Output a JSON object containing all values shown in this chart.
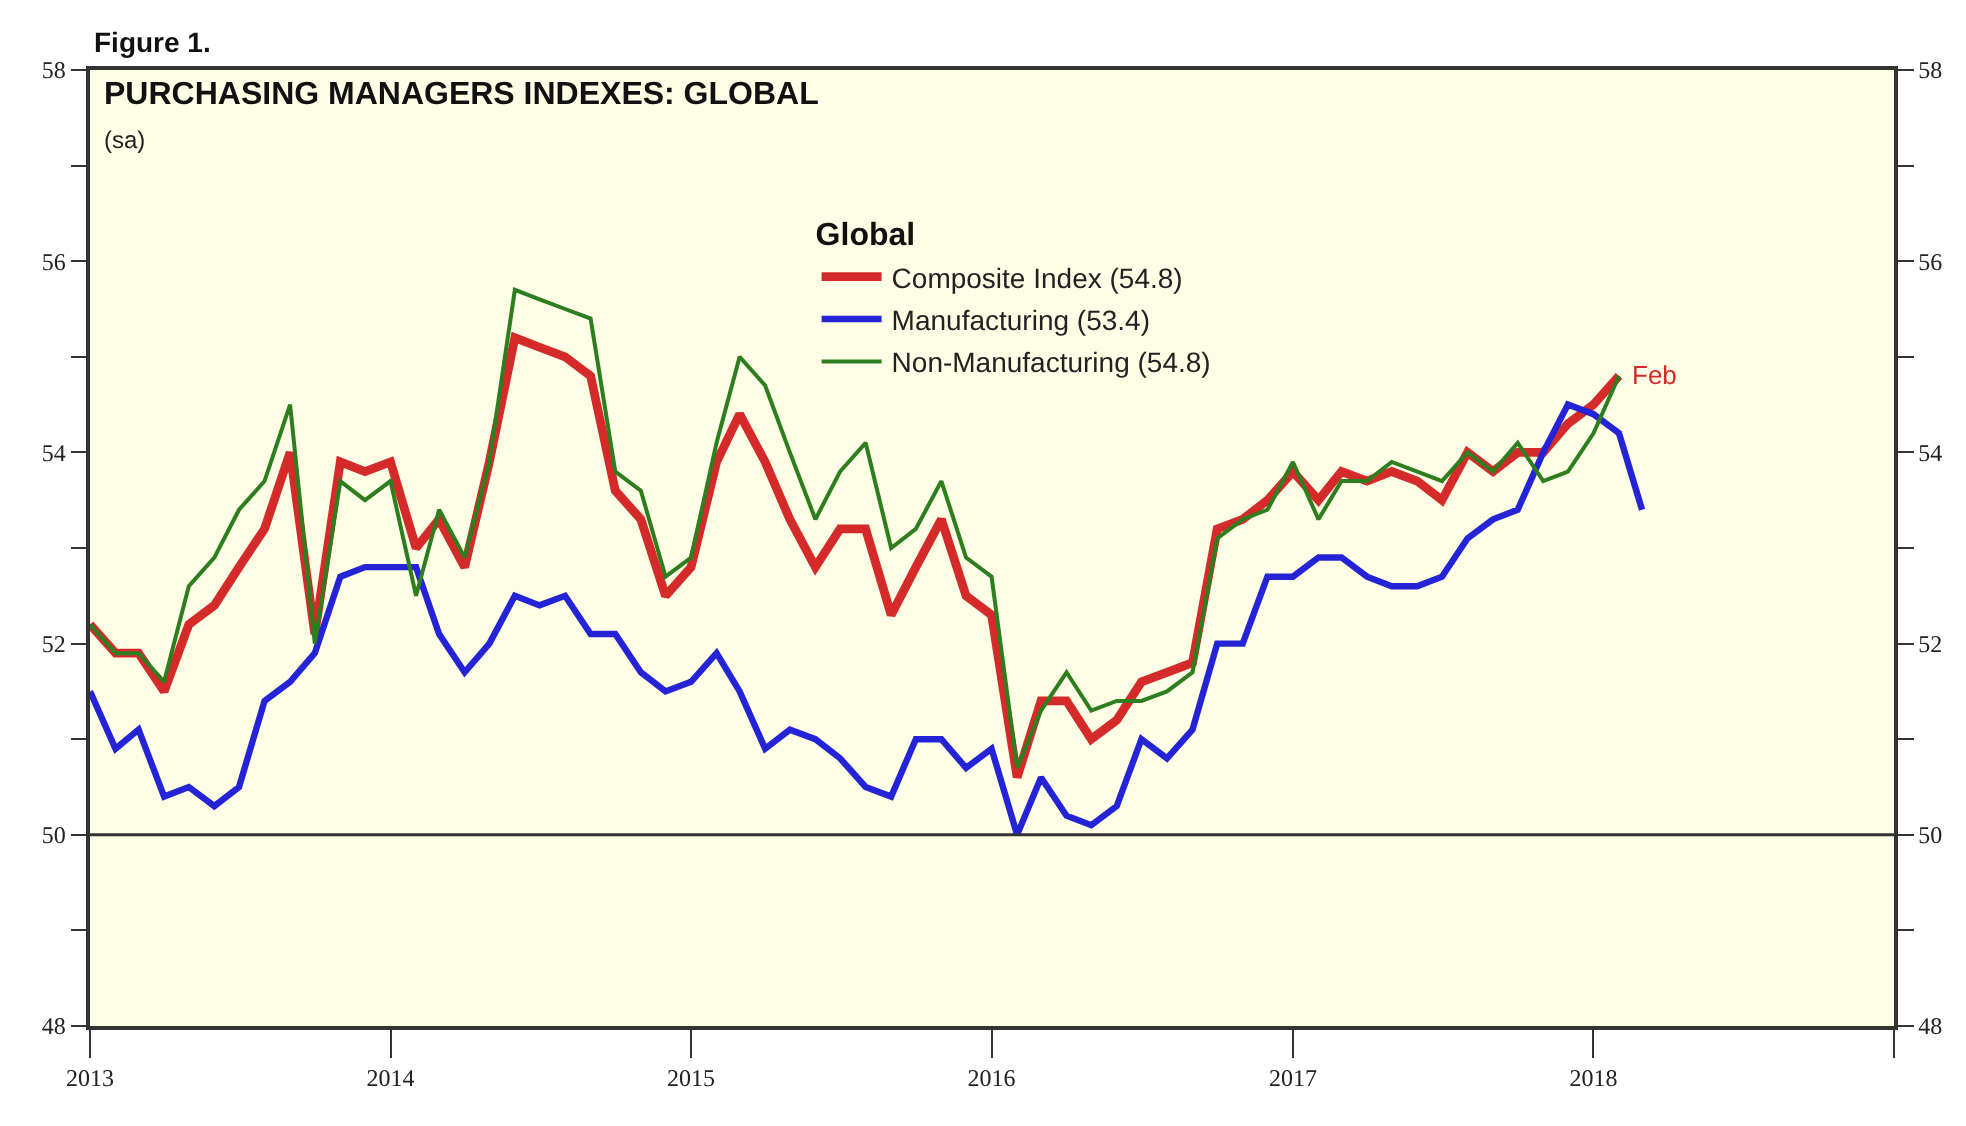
{
  "chart_data": {
    "type": "line",
    "title": "PURCHASING MANAGERS INDEXES: GLOBAL",
    "subtitle": "(sa)",
    "legend_title": "Global",
    "annotations": [
      "Figure 1.",
      {
        "text": "Feb",
        "x": "2018-02",
        "y": 54.8
      }
    ],
    "x": [
      "2013-01",
      "2013-02",
      "2013-03",
      "2013-04",
      "2013-05",
      "2013-06",
      "2013-07",
      "2013-08",
      "2013-09",
      "2013-10",
      "2013-11",
      "2013-12",
      "2014-01",
      "2014-02",
      "2014-03",
      "2014-04",
      "2014-05",
      "2014-06",
      "2014-07",
      "2014-08",
      "2014-09",
      "2014-10",
      "2014-11",
      "2014-12",
      "2015-01",
      "2015-02",
      "2015-03",
      "2015-04",
      "2015-05",
      "2015-06",
      "2015-07",
      "2015-08",
      "2015-09",
      "2015-10",
      "2015-11",
      "2015-12",
      "2016-01",
      "2016-02",
      "2016-03",
      "2016-04",
      "2016-05",
      "2016-06",
      "2016-07",
      "2016-08",
      "2016-09",
      "2016-10",
      "2016-11",
      "2016-12",
      "2017-01",
      "2017-02",
      "2017-03",
      "2017-04",
      "2017-05",
      "2017-06",
      "2017-07",
      "2017-08",
      "2017-09",
      "2017-10",
      "2017-11",
      "2017-12",
      "2018-01",
      "2018-02",
      "2018-03"
    ],
    "series": [
      {
        "name": "Composite Index (54.8)",
        "color": "#d42a2a",
        "values": [
          52.2,
          51.9,
          51.9,
          51.5,
          52.2,
          52.4,
          52.8,
          53.2,
          54.0,
          52.1,
          53.9,
          53.8,
          53.9,
          53.0,
          53.3,
          52.8,
          53.9,
          55.2,
          55.1,
          55.0,
          54.8,
          53.6,
          53.3,
          52.5,
          52.8,
          53.9,
          54.4,
          53.9,
          53.3,
          52.8,
          53.2,
          53.2,
          52.3,
          52.8,
          53.3,
          52.5,
          52.3,
          50.6,
          51.4,
          51.4,
          51.0,
          51.2,
          51.6,
          51.7,
          51.8,
          53.2,
          53.3,
          53.5,
          53.8,
          53.5,
          53.8,
          53.7,
          53.8,
          53.7,
          53.5,
          54.0,
          53.8,
          54.0,
          54.0,
          54.3,
          54.5,
          54.8,
          null
        ]
      },
      {
        "name": "Manufacturing (53.4)",
        "color": "#2424d6",
        "values": [
          51.5,
          50.9,
          51.1,
          50.4,
          50.5,
          50.3,
          50.5,
          51.4,
          51.6,
          51.9,
          52.7,
          52.8,
          52.8,
          52.8,
          52.1,
          51.7,
          52.0,
          52.5,
          52.4,
          52.5,
          52.1,
          52.1,
          51.7,
          51.5,
          51.6,
          51.9,
          51.5,
          50.9,
          51.1,
          51.0,
          50.8,
          50.5,
          50.4,
          51.0,
          51.0,
          50.7,
          50.9,
          50.0,
          50.6,
          50.2,
          50.1,
          50.3,
          51.0,
          50.8,
          51.1,
          52.0,
          52.0,
          52.7,
          52.7,
          52.9,
          52.9,
          52.7,
          52.6,
          52.6,
          52.7,
          53.1,
          53.3,
          53.4,
          54.0,
          54.5,
          54.4,
          54.2,
          53.4
        ]
      },
      {
        "name": "Non-Manufacturing (54.8)",
        "color": "#2e7d1e",
        "values": [
          52.2,
          51.9,
          51.9,
          51.6,
          52.6,
          52.9,
          53.4,
          53.7,
          54.5,
          52.0,
          53.7,
          53.5,
          53.7,
          52.5,
          53.4,
          52.9,
          53.9,
          55.7,
          55.6,
          55.5,
          55.4,
          53.8,
          53.6,
          52.7,
          52.9,
          54.1,
          55.0,
          54.7,
          54.0,
          53.3,
          53.8,
          54.1,
          53.0,
          53.2,
          53.7,
          52.9,
          52.7,
          50.7,
          51.3,
          51.7,
          51.3,
          51.4,
          51.4,
          51.5,
          51.7,
          53.1,
          53.3,
          53.4,
          53.9,
          53.3,
          53.7,
          53.7,
          53.9,
          53.8,
          53.7,
          54.0,
          53.8,
          54.1,
          53.7,
          53.8,
          54.2,
          54.8,
          null
        ]
      }
    ],
    "xlim": [
      "2013-01-01",
      "2019-01-01"
    ],
    "xticks": [
      {
        "value": "2013-01-01",
        "label": "2013"
      },
      {
        "value": "2014-01-01",
        "label": "2014"
      },
      {
        "value": "2015-01-01",
        "label": "2015"
      },
      {
        "value": "2016-01-01",
        "label": "2016"
      },
      {
        "value": "2017-01-01",
        "label": "2017"
      },
      {
        "value": "2018-01-01",
        "label": "2018"
      },
      {
        "value": "2019-01-01",
        "label": null
      }
    ],
    "ylim": [
      48,
      58
    ],
    "yticks": [
      48,
      {
        "value": 49,
        "label": null
      },
      50,
      {
        "value": 51,
        "label": null
      },
      52,
      {
        "value": 53,
        "label": null
      },
      54,
      {
        "value": 55,
        "label": null
      },
      56,
      {
        "value": 57,
        "label": null
      },
      58
    ],
    "y2lim": [
      48,
      58
    ],
    "y2ticks": [
      48,
      {
        "value": 49,
        "label": null
      },
      50,
      {
        "value": 51,
        "label": null
      },
      52,
      {
        "value": 53,
        "label": null
      },
      54,
      {
        "value": 55,
        "label": null
      },
      56,
      {
        "value": 57,
        "label": null
      },
      58
    ],
    "ref_lines": [
      {
        "axis": "y",
        "value": 50,
        "color": "#333333"
      }
    ],
    "grid": false,
    "legend": "top",
    "marker": "none",
    "line_style": "solid"
  }
}
